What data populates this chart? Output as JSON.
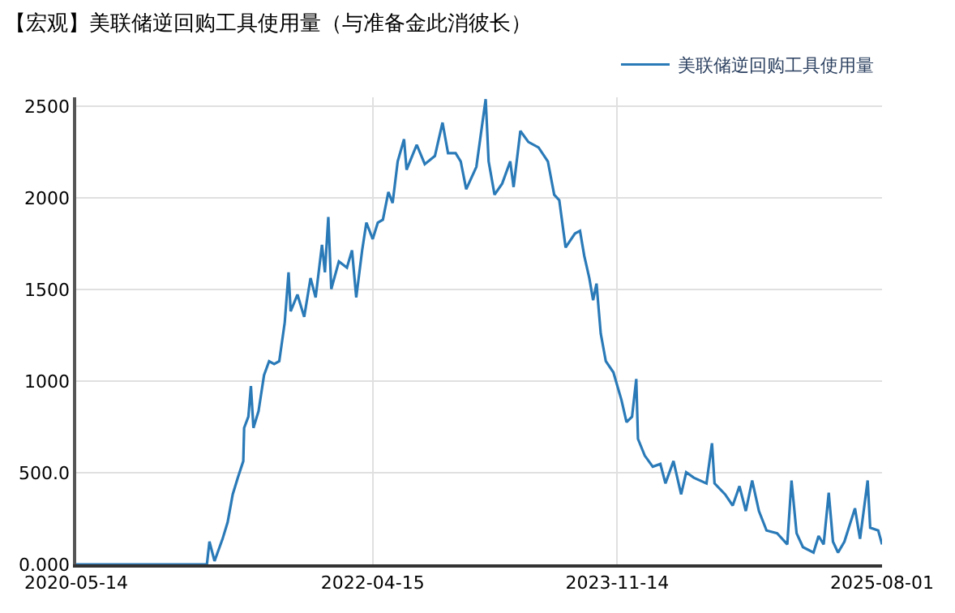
{
  "chart_data": {
    "type": "line",
    "title": "【宏观】美联储逆回购工具使用量（与准备金此消彼长）",
    "x": [
      "2020-05-14",
      "2021-03-19",
      "2021-03-25",
      "2021-04-06",
      "2021-04-25",
      "2021-05-07",
      "2021-05-19",
      "2021-05-31",
      "2021-06-13",
      "2021-06-15",
      "2021-06-25",
      "2021-07-01",
      "2021-07-07",
      "2021-07-19",
      "2021-08-01",
      "2021-08-13",
      "2021-08-25",
      "2021-09-06",
      "2021-09-19",
      "2021-09-28",
      "2021-10-03",
      "2021-10-19",
      "2021-11-04",
      "2021-11-19",
      "2021-12-01",
      "2021-12-16",
      "2021-12-23",
      "2021-12-31",
      "2022-01-07",
      "2022-01-25",
      "2022-02-13",
      "2022-02-25",
      "2022-03-07",
      "2022-03-21",
      "2022-03-31",
      "2022-04-15",
      "2022-04-27",
      "2022-05-09",
      "2022-05-22",
      "2022-06-01",
      "2022-06-13",
      "2022-06-28",
      "2022-07-04",
      "2022-07-28",
      "2022-08-16",
      "2022-09-09",
      "2022-09-27",
      "2022-10-10",
      "2022-10-28",
      "2022-11-09",
      "2022-11-22",
      "2022-12-16",
      "2023-01-07",
      "2023-01-14",
      "2023-01-28",
      "2023-02-15",
      "2023-03-06",
      "2023-03-14",
      "2023-03-30",
      "2023-04-18",
      "2023-05-12",
      "2023-06-03",
      "2023-06-18",
      "2023-06-30",
      "2023-07-15",
      "2023-08-06",
      "2023-08-18",
      "2023-08-28",
      "2023-09-09",
      "2023-09-18",
      "2023-09-26",
      "2023-10-06",
      "2023-10-18",
      "2023-11-05",
      "2023-11-24",
      "2023-12-06",
      "2023-12-19",
      "2023-12-29",
      "2024-01-02",
      "2024-01-18",
      "2024-02-06",
      "2024-02-24",
      "2024-03-07",
      "2024-03-26",
      "2024-04-13",
      "2024-04-25",
      "2024-05-13",
      "2024-06-12",
      "2024-06-25",
      "2024-07-01",
      "2024-07-26",
      "2024-08-13",
      "2024-08-29",
      "2024-09-13",
      "2024-09-28",
      "2024-10-14",
      "2024-11-01",
      "2024-11-26",
      "2024-12-20",
      "2024-12-30",
      "2025-01-11",
      "2025-01-26",
      "2025-02-20",
      "2025-03-04",
      "2025-03-16",
      "2025-03-28",
      "2025-04-07",
      "2025-04-19",
      "2025-05-04",
      "2025-05-29",
      "2025-06-10",
      "2025-06-28",
      "2025-07-04",
      "2025-07-23",
      "2025-08-01"
    ],
    "series": [
      {
        "name": "美联储逆回购工具使用量",
        "color": "#2a7ab8",
        "values": [
          0,
          0,
          124,
          18,
          139,
          230,
          382,
          473,
          564,
          745,
          806,
          973,
          745,
          836,
          1033,
          1109,
          1094,
          1109,
          1321,
          1594,
          1382,
          1473,
          1351,
          1563,
          1457,
          1745,
          1594,
          1897,
          1503,
          1654,
          1620,
          1715,
          1457,
          1715,
          1866,
          1776,
          1866,
          1882,
          2033,
          1973,
          2200,
          2321,
          2154,
          2291,
          2185,
          2230,
          2412,
          2245,
          2245,
          2200,
          2048,
          2170,
          2540,
          2200,
          2018,
          2079,
          2200,
          2060,
          2366,
          2306,
          2276,
          2200,
          2018,
          1988,
          1730,
          1806,
          1821,
          1685,
          1563,
          1442,
          1533,
          1260,
          1109,
          1048,
          897,
          776,
          806,
          1012,
          685,
          594,
          533,
          548,
          442,
          564,
          382,
          503,
          473,
          442,
          661,
          442,
          382,
          321,
          427,
          291,
          458,
          291,
          185,
          170,
          109,
          458,
          170,
          94,
          64,
          155,
          109,
          391,
          124,
          64,
          124,
          306,
          139,
          458,
          200,
          185,
          109
        ]
      }
    ],
    "xlim": [
      "2020-05-14",
      "2025-08-01"
    ],
    "xticks": [
      "2020-05-14",
      "2022-04-15",
      "2023-11-14",
      "2025-08-01"
    ],
    "ylim": [
      0,
      2550
    ],
    "yticks": [
      {
        "value": 0,
        "label": "0.000"
      },
      {
        "value": 500,
        "label": "500.0"
      },
      1000,
      1500,
      2000,
      2500
    ],
    "grid": true,
    "legend": "top right"
  }
}
